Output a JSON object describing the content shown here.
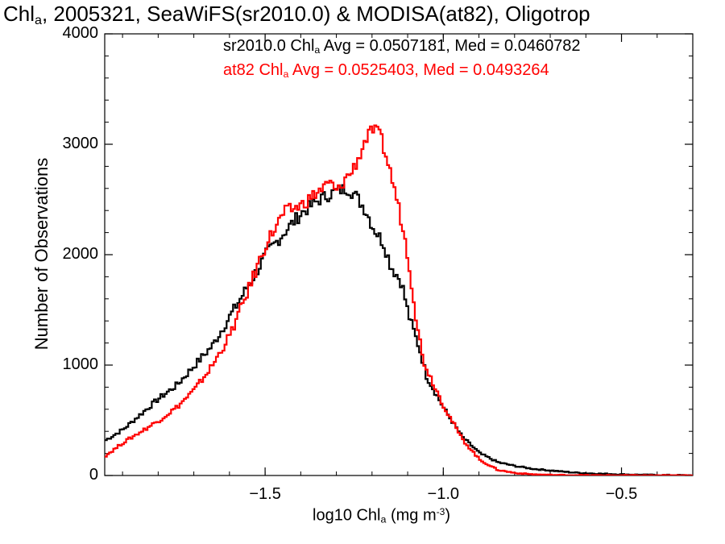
{
  "chart_data": {
    "type": "line",
    "title": {
      "pre": "Chl",
      "sub": "a",
      "post": ", 2005321, SeaWiFS(sr2010.0) & MODISA(at82), Oligotrop"
    },
    "xlabel": {
      "pre": "log10 Chl",
      "sub": "a",
      "mid": " (mg m",
      "sup": "-3",
      "post": ")"
    },
    "ylabel": "Number of Observations",
    "xlim": [
      -1.95,
      -0.3
    ],
    "ylim": [
      0,
      4000
    ],
    "x_ticks": [
      -1.5,
      -1.0,
      -0.5
    ],
    "x_tick_labels": [
      "−1.5",
      "−1.0",
      "−0.5"
    ],
    "y_ticks": [
      0,
      1000,
      2000,
      3000,
      4000
    ],
    "y_tick_labels": [
      "0",
      "1000",
      "2000",
      "3000",
      "4000"
    ],
    "legend": [
      {
        "pre": "sr2010.0 Chl",
        "sub": "a",
        "post": " Avg = 0.0507181, Med = 0.0460782",
        "color": "#000000"
      },
      {
        "pre": "at82 Chl",
        "sub": "a",
        "post": " Avg = 0.0525403, Med = 0.0493264",
        "color": "#ff0000"
      }
    ],
    "series": [
      {
        "color": "#000000",
        "x": [
          -1.95,
          -1.9,
          -1.85,
          -1.8,
          -1.75,
          -1.7,
          -1.65,
          -1.6,
          -1.55,
          -1.5,
          -1.45,
          -1.4,
          -1.35,
          -1.32,
          -1.3,
          -1.27,
          -1.25,
          -1.22,
          -1.2,
          -1.17,
          -1.15,
          -1.12,
          -1.1,
          -1.07,
          -1.05,
          -1.0,
          -0.95,
          -0.9,
          -0.85,
          -0.8,
          -0.75,
          -0.7,
          -0.65,
          -0.6,
          -0.5,
          -0.4,
          -0.3
        ],
        "y": [
          320,
          420,
          560,
          700,
          820,
          1000,
          1180,
          1450,
          1720,
          2000,
          2200,
          2380,
          2500,
          2550,
          2580,
          2600,
          2540,
          2400,
          2250,
          2100,
          1900,
          1750,
          1450,
          1150,
          900,
          600,
          350,
          200,
          120,
          85,
          60,
          45,
          30,
          20,
          10,
          4,
          2
        ]
      },
      {
        "color": "#ff0000",
        "x": [
          -1.95,
          -1.9,
          -1.85,
          -1.8,
          -1.75,
          -1.7,
          -1.65,
          -1.6,
          -1.55,
          -1.5,
          -1.45,
          -1.4,
          -1.35,
          -1.32,
          -1.3,
          -1.28,
          -1.26,
          -1.24,
          -1.22,
          -1.2,
          -1.18,
          -1.16,
          -1.14,
          -1.12,
          -1.1,
          -1.08,
          -1.06,
          -1.04,
          -1.02,
          -1.0,
          -0.95,
          -0.9,
          -0.85,
          -0.8,
          -0.75,
          -0.7,
          -0.6,
          -0.5,
          -0.4,
          -0.3
        ],
        "y": [
          180,
          300,
          400,
          500,
          620,
          780,
          1000,
          1280,
          1680,
          2100,
          2380,
          2450,
          2580,
          2650,
          2560,
          2680,
          2750,
          2880,
          3050,
          3130,
          3080,
          2850,
          2600,
          2300,
          1950,
          1450,
          1050,
          900,
          760,
          620,
          330,
          140,
          50,
          22,
          10,
          5,
          2,
          1,
          0,
          0
        ]
      }
    ],
    "grid": false,
    "legend_position": "top-right"
  }
}
